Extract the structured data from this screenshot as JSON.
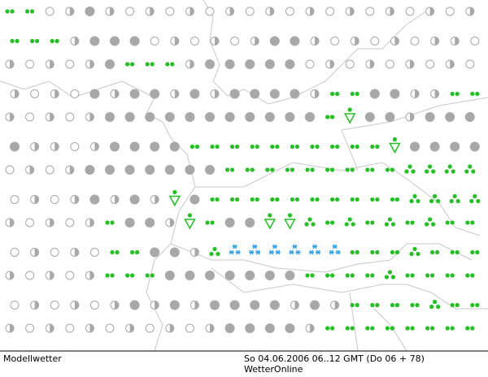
{
  "footer": {
    "left": "Modellwetter",
    "date": "So 04.06.2006 06..12 GMT (Do 06 + 78)",
    "source": "WetterOnline"
  }
}
